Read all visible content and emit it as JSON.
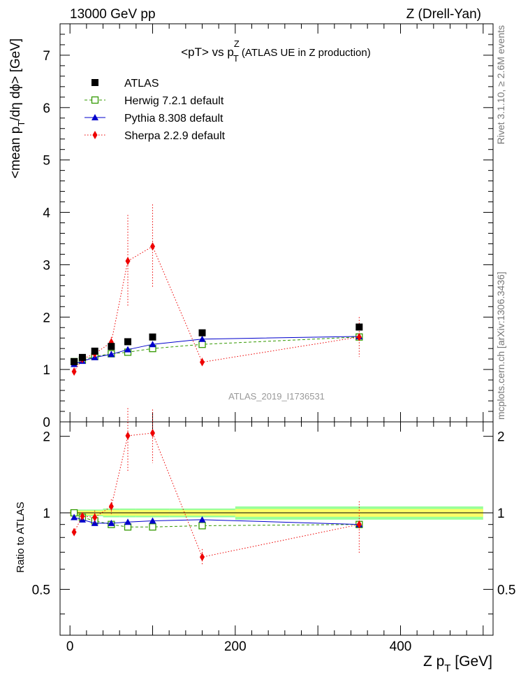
{
  "header": {
    "left": "13000 GeV pp",
    "right": "Z (Drell-Yan)"
  },
  "side_labels": {
    "rivet": "Rivet 3.1.10, ≥ 2.6M events",
    "mcplots": "mcplots.cern.ch [arXiv:1306.3436]"
  },
  "colors": {
    "atlas": "#000000",
    "herwig": "#339900",
    "pythia": "#0000cc",
    "sherpa": "#ee0000",
    "band_inner": "#ffff66",
    "band_outer": "#99ff99"
  },
  "chart_data": [
    {
      "type": "scatter",
      "panel": "main",
      "title": "<pT> vs p_T^Z (ATLAS UE in Z production)",
      "title_parts": {
        "a": "<pT> vs p",
        "sub": "T",
        "sup": "Z",
        "b": " (ATLAS UE in Z production)"
      },
      "ylabel": "<mean p_T/dη dϕ> [GeV]",
      "ylabel_parts": {
        "a": "<mean p",
        "sub": "T",
        "b": "/dη dϕ> [GeV]"
      },
      "watermark": "ATLAS_2019_I1736531",
      "xlim": [
        -12,
        512
      ],
      "ylim": [
        0,
        7.6
      ],
      "yticks": [
        0,
        1,
        2,
        3,
        4,
        5,
        6,
        7
      ],
      "legend_position": "top-left",
      "x": [
        5,
        15,
        30,
        50,
        70,
        100,
        160,
        350
      ],
      "series": [
        {
          "name": "ATLAS",
          "marker": "filled-square",
          "line": "none",
          "values": [
            1.15,
            1.23,
            1.35,
            1.44,
            1.53,
            1.62,
            1.7,
            1.81
          ],
          "err": [
            0.02,
            0.02,
            0.02,
            0.03,
            0.03,
            0.04,
            0.04,
            0.06
          ]
        },
        {
          "name": "Herwig 7.2.1 default",
          "marker": "open-square",
          "line": "dashed",
          "values": [
            1.15,
            1.18,
            1.25,
            1.3,
            1.33,
            1.4,
            1.48,
            1.62
          ],
          "err": [
            0.01,
            0.01,
            0.01,
            0.01,
            0.02,
            0.02,
            0.03,
            0.05
          ]
        },
        {
          "name": "Pythia 8.308 default",
          "marker": "triangle",
          "line": "solid",
          "values": [
            1.1,
            1.16,
            1.23,
            1.29,
            1.38,
            1.48,
            1.58,
            1.63
          ],
          "err": [
            0.01,
            0.01,
            0.01,
            0.01,
            0.02,
            0.02,
            0.03,
            0.05
          ]
        },
        {
          "name": "Sherpa 2.2.9 default",
          "marker": "diamond",
          "line": "dotted",
          "values": [
            0.96,
            1.2,
            1.3,
            1.52,
            3.07,
            3.35,
            1.14,
            1.62
          ],
          "err": [
            0.04,
            0.04,
            0.08,
            0.1,
            0.88,
            0.8,
            0.08,
            0.38
          ]
        }
      ]
    },
    {
      "type": "scatter",
      "panel": "ratio",
      "ylabel": "Ratio to ATLAS",
      "xlabel": "Z p_T [GeV]",
      "xlabel_parts": {
        "a": "Z p",
        "sub": "T",
        "b": " [GeV]"
      },
      "xlim": [
        -12,
        512
      ],
      "ylim": [
        0.33,
        2.28
      ],
      "yticks": [
        0.5,
        1,
        2
      ],
      "xticks": [
        0,
        200,
        400
      ],
      "x": [
        5,
        15,
        30,
        50,
        70,
        100,
        160,
        350
      ],
      "band": {
        "edges": [
          0,
          10,
          20,
          40,
          60,
          80,
          120,
          200,
          500
        ],
        "inner": [
          0.02,
          0.02,
          0.02,
          0.025,
          0.025,
          0.025,
          0.025,
          0.035
        ],
        "outer": [
          0.03,
          0.03,
          0.03,
          0.04,
          0.04,
          0.04,
          0.04,
          0.06
        ]
      },
      "series": [
        {
          "name": "Herwig 7.2.1 default",
          "values": [
            1.0,
            0.96,
            0.93,
            0.9,
            0.88,
            0.88,
            0.89,
            0.9
          ],
          "err": [
            0.01,
            0.01,
            0.01,
            0.01,
            0.01,
            0.01,
            0.02,
            0.03
          ]
        },
        {
          "name": "Pythia 8.308 default",
          "values": [
            0.96,
            0.94,
            0.91,
            0.91,
            0.92,
            0.93,
            0.94,
            0.9
          ],
          "err": [
            0.01,
            0.01,
            0.01,
            0.01,
            0.01,
            0.01,
            0.02,
            0.03
          ]
        },
        {
          "name": "Sherpa 2.2.9 default",
          "values": [
            0.84,
            0.97,
            0.96,
            1.06,
            2.01,
            2.06,
            0.67,
            0.9
          ],
          "err": [
            0.03,
            0.03,
            0.06,
            0.07,
            0.57,
            0.49,
            0.05,
            0.21
          ]
        }
      ]
    }
  ]
}
